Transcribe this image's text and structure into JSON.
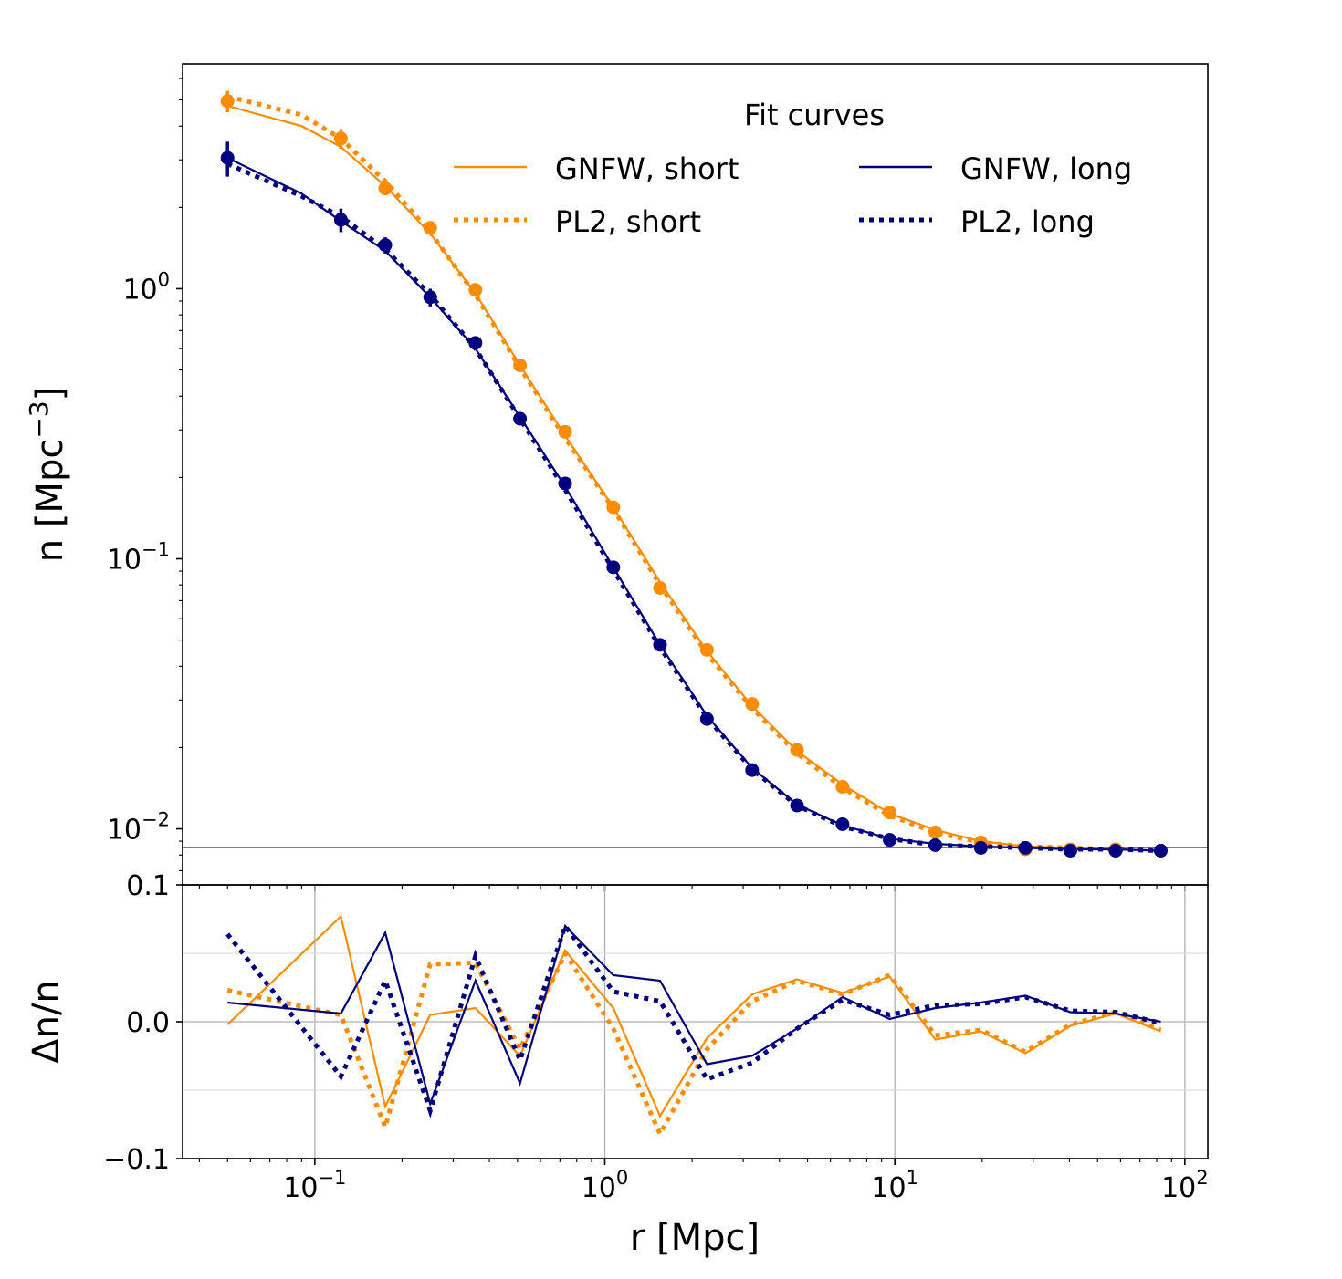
{
  "colors": {
    "short": "#ff8c00",
    "long": "#000080",
    "axis": "#000000",
    "grid": "#b0b0b0",
    "grid_light": "#d9d9d9",
    "background_line": "#808080"
  },
  "chart_data": [
    {
      "type": "scatter",
      "panel": "top",
      "xscale": "log",
      "yscale": "log",
      "xlim": [
        0.035,
        120
      ],
      "ylim": [
        0.0062,
        6.8
      ],
      "ylabel": "n [Mpc",
      "ylabel_sup": "−3",
      "ylabel_end": "]",
      "ytick_labels": [
        {
          "value": 1,
          "base": "10",
          "exp": "0"
        },
        {
          "value": 0.1,
          "base": "10",
          "exp": "−1"
        },
        {
          "value": 0.01,
          "base": "10",
          "exp": "−2"
        }
      ],
      "background_level": 0.0085,
      "x": [
        0.05,
        0.123,
        0.175,
        0.25,
        0.358,
        0.51,
        0.73,
        1.07,
        1.55,
        2.25,
        3.22,
        4.6,
        6.6,
        9.6,
        13.8,
        19.8,
        28.2,
        40.3,
        57.7,
        82.6
      ],
      "legend_title": "Fit curves",
      "legend": [
        {
          "label": "GNFW, short",
          "series": "short",
          "style": "solid"
        },
        {
          "label": "GNFW, long",
          "series": "long",
          "style": "solid"
        },
        {
          "label": "PL2, short",
          "series": "short",
          "style": "dotted"
        },
        {
          "label": "PL2, long",
          "series": "long",
          "style": "dotted"
        }
      ],
      "series": [
        {
          "name": "data, short",
          "color_key": "short",
          "values": [
            4.95,
            3.6,
            2.35,
            1.68,
            0.99,
            0.52,
            0.295,
            0.155,
            0.078,
            0.046,
            0.029,
            0.0196,
            0.0143,
            0.0115,
            0.0097,
            0.0089,
            0.0084,
            0.0084,
            0.0084,
            0.0083
          ],
          "yerr": [
            0.45,
            0.3,
            0.12,
            0.07,
            0.03,
            0.02,
            0.01,
            0.005,
            0.002,
            0.0015,
            0.0008,
            0.0005,
            0.0004,
            0.0003,
            0.0002,
            0.0002,
            0.0002,
            0.0002,
            0.0002,
            0.0002
          ]
        },
        {
          "name": "data, long",
          "color_key": "long",
          "values": [
            3.05,
            1.8,
            1.45,
            0.93,
            0.63,
            0.33,
            0.19,
            0.093,
            0.048,
            0.0255,
            0.0165,
            0.0122,
            0.0104,
            0.0091,
            0.0087,
            0.0085,
            0.0085,
            0.0083,
            0.0083,
            0.0083
          ],
          "yerr": [
            0.45,
            0.18,
            0.1,
            0.07,
            0.03,
            0.015,
            0.008,
            0.004,
            0.002,
            0.001,
            0.0006,
            0.0004,
            0.0003,
            0.0003,
            0.0002,
            0.0002,
            0.0002,
            0.0002,
            0.0002,
            0.0002
          ]
        },
        {
          "name": "GNFW, short",
          "color_key": "short",
          "style": "solid",
          "x": [
            0.05,
            0.09,
            0.123,
            0.175,
            0.25,
            0.358,
            0.51,
            0.73,
            1.07,
            1.55,
            2.25,
            3.22,
            4.6,
            6.6,
            9.6,
            13.8,
            19.8,
            28.2,
            40.3,
            57.7,
            82.6
          ],
          "values": [
            4.75,
            4.0,
            3.35,
            2.4,
            1.6,
            0.96,
            0.52,
            0.285,
            0.155,
            0.082,
            0.0455,
            0.0285,
            0.0194,
            0.0146,
            0.0114,
            0.0099,
            0.009,
            0.0086,
            0.0085,
            0.0084,
            0.0083
          ]
        },
        {
          "name": "PL2, short",
          "color_key": "short",
          "style": "dotted",
          "x": [
            0.05,
            0.09,
            0.123,
            0.175,
            0.25,
            0.358,
            0.51,
            0.73,
            1.07,
            1.55,
            2.25,
            3.22,
            4.6,
            6.6,
            9.6,
            13.8,
            19.8,
            28.2,
            40.3,
            57.7,
            82.6
          ],
          "values": [
            5.15,
            4.4,
            3.6,
            2.5,
            1.62,
            0.95,
            0.51,
            0.28,
            0.153,
            0.08,
            0.0445,
            0.028,
            0.019,
            0.0142,
            0.0112,
            0.0097,
            0.0089,
            0.0086,
            0.0085,
            0.0084,
            0.0083
          ]
        },
        {
          "name": "GNFW, long",
          "color_key": "long",
          "style": "solid",
          "x": [
            0.05,
            0.09,
            0.123,
            0.175,
            0.25,
            0.358,
            0.51,
            0.73,
            1.07,
            1.55,
            2.25,
            3.22,
            4.6,
            6.6,
            9.6,
            13.8,
            19.8,
            28.2,
            40.3,
            57.7,
            82.6
          ],
          "values": [
            3.05,
            2.25,
            1.78,
            1.38,
            0.93,
            0.6,
            0.335,
            0.185,
            0.093,
            0.048,
            0.0262,
            0.0168,
            0.0123,
            0.0103,
            0.0092,
            0.0088,
            0.0086,
            0.0085,
            0.0084,
            0.0084,
            0.0083
          ]
        },
        {
          "name": "PL2, long",
          "color_key": "long",
          "style": "dotted",
          "x": [
            0.05,
            0.09,
            0.123,
            0.175,
            0.25,
            0.358,
            0.51,
            0.73,
            1.07,
            1.55,
            2.25,
            3.22,
            4.6,
            6.6,
            9.6,
            13.8,
            19.8,
            28.2,
            40.3,
            57.7,
            82.6
          ],
          "values": [
            2.9,
            2.2,
            1.85,
            1.4,
            0.95,
            0.6,
            0.33,
            0.18,
            0.091,
            0.047,
            0.0258,
            0.0166,
            0.0122,
            0.0102,
            0.0092,
            0.0087,
            0.0086,
            0.0085,
            0.0084,
            0.0084,
            0.0083
          ]
        }
      ]
    },
    {
      "type": "line",
      "panel": "bottom",
      "xscale": "log",
      "xlim": [
        0.035,
        120
      ],
      "ylim": [
        -0.1,
        0.1
      ],
      "xlabel": "r [Mpc]",
      "ylabel": "Δn/n",
      "ytick_labels": [
        {
          "value": 0.1,
          "text": "0.1"
        },
        {
          "value": 0.0,
          "text": "0.0"
        },
        {
          "value": -0.1,
          "text": "−0.1"
        }
      ],
      "minor_gridlines": [
        0.05,
        -0.05
      ],
      "xtick_labels": [
        {
          "value": 0.1,
          "base": "10",
          "exp": "−1"
        },
        {
          "value": 1,
          "base": "10",
          "exp": "0"
        },
        {
          "value": 10,
          "base": "10",
          "exp": "1"
        },
        {
          "value": 100,
          "base": "10",
          "exp": "2"
        }
      ],
      "x": [
        0.05,
        0.123,
        0.175,
        0.25,
        0.358,
        0.51,
        0.73,
        1.07,
        1.55,
        2.25,
        3.22,
        4.6,
        6.6,
        9.6,
        13.8,
        19.8,
        28.2,
        40.3,
        57.7,
        82.6
      ],
      "series": [
        {
          "name": "GNFW, short",
          "color_key": "short",
          "style": "solid",
          "values": [
            -0.002,
            0.077,
            -0.062,
            0.005,
            0.01,
            -0.025,
            0.052,
            0.01,
            -0.069,
            -0.012,
            0.02,
            0.031,
            0.021,
            0.033,
            -0.013,
            -0.007,
            -0.023,
            -0.003,
            0.006,
            -0.007
          ]
        },
        {
          "name": "PL2, short",
          "color_key": "short",
          "style": "dotted",
          "values": [
            0.023,
            0.005,
            -0.077,
            0.042,
            0.043,
            -0.02,
            0.05,
            -0.005,
            -0.082,
            -0.02,
            0.015,
            0.03,
            0.02,
            0.034,
            -0.01,
            -0.006,
            -0.022,
            -0.002,
            0.007,
            -0.006
          ]
        },
        {
          "name": "GNFW, long",
          "color_key": "long",
          "style": "solid",
          "values": [
            0.014,
            0.006,
            0.065,
            -0.06,
            0.03,
            -0.045,
            0.07,
            0.034,
            0.03,
            -0.031,
            -0.025,
            -0.005,
            0.018,
            0.002,
            0.01,
            0.014,
            0.019,
            0.007,
            0.006,
            0.0
          ]
        },
        {
          "name": "PL2, long",
          "color_key": "long",
          "style": "dotted",
          "values": [
            0.064,
            -0.04,
            0.03,
            -0.065,
            0.048,
            -0.028,
            0.07,
            0.022,
            0.015,
            -0.042,
            -0.03,
            -0.005,
            0.016,
            0.005,
            0.012,
            0.013,
            0.018,
            0.008,
            0.007,
            -0.001
          ]
        }
      ]
    }
  ]
}
